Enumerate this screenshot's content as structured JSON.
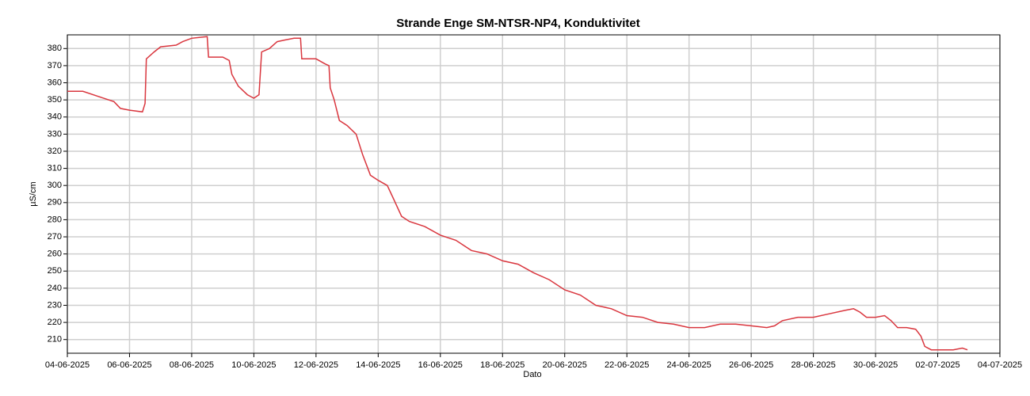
{
  "chart_data": {
    "type": "line",
    "title": "Strande Enge SM-NTSR-NP4, Konduktivitet",
    "xlabel": "Dato",
    "ylabel": "µS/cm",
    "grid": true,
    "xlim": [
      "2025-06-04T00:00",
      "2025-07-04T00:00"
    ],
    "xticks": [
      {
        "value": "2025-06-04T00:00",
        "label": "04-06-2025"
      },
      {
        "value": "2025-06-06T00:00",
        "label": "06-06-2025"
      },
      {
        "value": "2025-06-08T00:00",
        "label": "08-06-2025"
      },
      {
        "value": "2025-06-10T00:00",
        "label": "10-06-2025"
      },
      {
        "value": "2025-06-12T00:00",
        "label": "12-06-2025"
      },
      {
        "value": "2025-06-14T00:00",
        "label": "14-06-2025"
      },
      {
        "value": "2025-06-16T00:00",
        "label": "16-06-2025"
      },
      {
        "value": "2025-06-18T00:00",
        "label": "18-06-2025"
      },
      {
        "value": "2025-06-20T00:00",
        "label": "20-06-2025"
      },
      {
        "value": "2025-06-22T00:00",
        "label": "22-06-2025"
      },
      {
        "value": "2025-06-24T00:00",
        "label": "24-06-2025"
      },
      {
        "value": "2025-06-26T00:00",
        "label": "26-06-2025"
      },
      {
        "value": "2025-06-28T00:00",
        "label": "28-06-2025"
      },
      {
        "value": "2025-06-30T00:00",
        "label": "30-06-2025"
      },
      {
        "value": "2025-07-02T00:00",
        "label": "02-07-2025"
      },
      {
        "value": "2025-07-04T00:00",
        "label": "04-07-2025"
      }
    ],
    "ylim": [
      202,
      388
    ],
    "yticks": [
      210,
      220,
      230,
      240,
      250,
      260,
      270,
      280,
      290,
      300,
      310,
      320,
      330,
      340,
      350,
      360,
      370,
      380
    ],
    "x": [
      "2025-06-04T00:00",
      "2025-06-04T12:00",
      "2025-06-05T00:00",
      "2025-06-05T12:00",
      "2025-06-05T17:00",
      "2025-06-06T00:00",
      "2025-06-06T10:00",
      "2025-06-06T12:00",
      "2025-06-06T13:00",
      "2025-06-06T19:00",
      "2025-06-07T00:00",
      "2025-06-07T12:00",
      "2025-06-07T17:00",
      "2025-06-08T00:00",
      "2025-06-08T12:00",
      "2025-06-08T13:00",
      "2025-06-09T00:00",
      "2025-06-09T05:00",
      "2025-06-09T07:00",
      "2025-06-09T12:00",
      "2025-06-09T19:00",
      "2025-06-10T00:00",
      "2025-06-10T04:00",
      "2025-06-10T06:00",
      "2025-06-10T12:00",
      "2025-06-10T18:00",
      "2025-06-11T00:00",
      "2025-06-11T07:00",
      "2025-06-11T12:00",
      "2025-06-11T13:00",
      "2025-06-11T19:00",
      "2025-06-12T00:00",
      "2025-06-12T07:00",
      "2025-06-12T10:00",
      "2025-06-12T11:00",
      "2025-06-12T14:00",
      "2025-06-12T18:00",
      "2025-06-13T00:00",
      "2025-06-13T07:00",
      "2025-06-13T12:00",
      "2025-06-13T18:00",
      "2025-06-14T00:00",
      "2025-06-14T07:00",
      "2025-06-14T12:00",
      "2025-06-14T18:00",
      "2025-06-15T00:00",
      "2025-06-15T12:00",
      "2025-06-16T00:00",
      "2025-06-16T12:00",
      "2025-06-17T00:00",
      "2025-06-17T12:00",
      "2025-06-18T00:00",
      "2025-06-18T12:00",
      "2025-06-19T00:00",
      "2025-06-19T12:00",
      "2025-06-20T00:00",
      "2025-06-20T12:00",
      "2025-06-21T00:00",
      "2025-06-21T12:00",
      "2025-06-22T00:00",
      "2025-06-22T12:00",
      "2025-06-23T00:00",
      "2025-06-23T12:00",
      "2025-06-24T00:00",
      "2025-06-24T12:00",
      "2025-06-25T00:00",
      "2025-06-25T12:00",
      "2025-06-26T00:00",
      "2025-06-26T12:00",
      "2025-06-26T18:00",
      "2025-06-27T00:00",
      "2025-06-27T12:00",
      "2025-06-28T00:00",
      "2025-06-28T12:00",
      "2025-06-29T00:00",
      "2025-06-29T07:00",
      "2025-06-29T12:00",
      "2025-06-29T17:00",
      "2025-06-30T00:00",
      "2025-06-30T07:00",
      "2025-06-30T12:00",
      "2025-06-30T17:00",
      "2025-07-01T00:00",
      "2025-07-01T07:00",
      "2025-07-01T11:00",
      "2025-07-01T14:00",
      "2025-07-01T19:00",
      "2025-07-02T00:00",
      "2025-07-02T12:00",
      "2025-07-02T19:00",
      "2025-07-02T23:00"
    ],
    "series": [
      {
        "name": "Konduktivitet",
        "color": "#d9363e",
        "values": [
          355,
          355,
          352,
          349,
          345,
          344,
          343,
          348,
          374,
          378,
          381,
          382,
          384,
          386,
          387,
          375,
          375,
          373,
          365,
          358,
          353,
          351,
          353,
          378,
          380,
          384,
          385,
          386,
          386,
          374,
          374,
          374,
          371,
          370,
          357,
          350,
          338,
          335,
          330,
          318,
          306,
          303,
          300,
          292,
          282,
          279,
          276,
          271,
          268,
          262,
          260,
          256,
          254,
          249,
          245,
          239,
          236,
          230,
          228,
          224,
          223,
          220,
          219,
          217,
          217,
          219,
          219,
          218,
          217,
          218,
          221,
          223,
          223,
          225,
          227,
          228,
          226,
          223,
          223,
          224,
          221,
          217,
          217,
          216,
          212,
          206,
          204,
          204,
          204,
          205,
          204
        ]
      }
    ]
  }
}
